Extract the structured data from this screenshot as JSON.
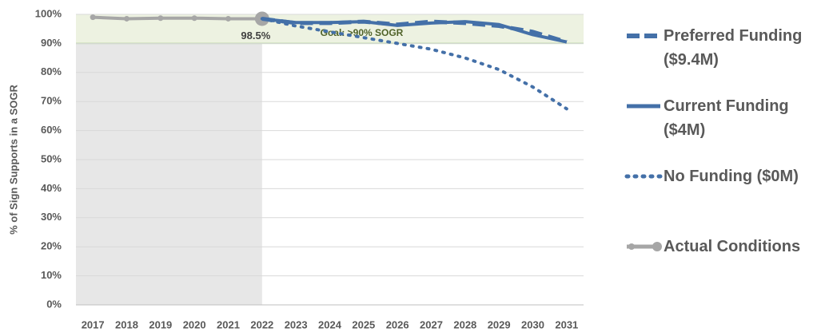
{
  "chart_data": {
    "type": "line",
    "y_label": "% of Sign Supports in a SOGR",
    "categories": [
      "2017",
      "2018",
      "2019",
      "2020",
      "2021",
      "2022",
      "2023",
      "2024",
      "2025",
      "2026",
      "2027",
      "2028",
      "2029",
      "2030",
      "2031"
    ],
    "series": [
      {
        "name": "Preferred Funding ($9.4M)",
        "color": "#4470a8",
        "dash": "dashed",
        "values": [
          null,
          null,
          null,
          null,
          null,
          98.5,
          97,
          97,
          97.5,
          96.5,
          97.5,
          97,
          96,
          94,
          90.5
        ]
      },
      {
        "name": "Current Funding ($4M)",
        "color": "#4470a8",
        "dash": "solid",
        "values": [
          null,
          null,
          null,
          null,
          null,
          98.5,
          97.2,
          97.2,
          97.5,
          96.2,
          97,
          97.5,
          96.5,
          93,
          90.5
        ]
      },
      {
        "name": "No Funding ($0M)",
        "color": "#4470a8",
        "dash": "dotted",
        "values": [
          null,
          null,
          null,
          null,
          null,
          98.5,
          96,
          94,
          92,
          90,
          88,
          85,
          81,
          75,
          67.5
        ]
      },
      {
        "name": "Actual Conditions",
        "color": "#a6a6a6",
        "dash": "solid",
        "marker": true,
        "values": [
          99,
          98.5,
          98.7,
          98.7,
          98.5,
          98.5,
          null,
          null,
          null,
          null,
          null,
          null,
          null,
          null,
          null
        ],
        "value_labels": [
          null,
          null,
          null,
          null,
          null,
          "98.5%",
          null,
          null,
          null,
          null,
          null,
          null,
          null,
          null,
          null
        ]
      }
    ],
    "goal": {
      "label": "Goal: >90% SOGR",
      "range": [
        90,
        100
      ]
    },
    "ylim": [
      0,
      100
    ],
    "yticks": [
      {
        "value": 0,
        "label": "0%"
      },
      {
        "value": 10,
        "label": "10%"
      },
      {
        "value": 20,
        "label": "20%"
      },
      {
        "value": 30,
        "label": "30%"
      },
      {
        "value": 40,
        "label": "40%"
      },
      {
        "value": 50,
        "label": "50%"
      },
      {
        "value": 60,
        "label": "60%"
      },
      {
        "value": 70,
        "label": "70%"
      },
      {
        "value": 80,
        "label": "80%"
      },
      {
        "value": 90,
        "label": "90%"
      },
      {
        "value": 100,
        "label": "100%"
      }
    ],
    "grid": true,
    "legend": "right"
  }
}
